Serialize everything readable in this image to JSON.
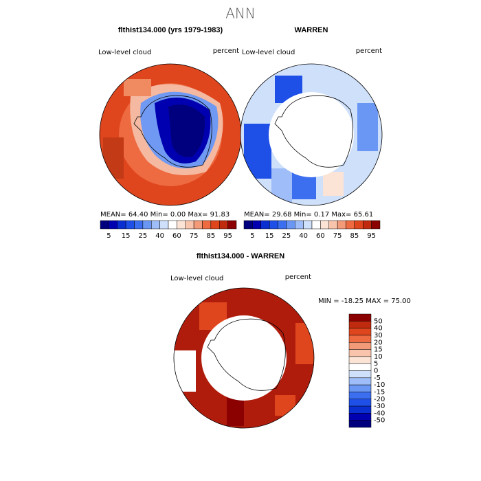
{
  "title": "ANN",
  "panels": [
    {
      "title": "flthist134.000 (yrs 1979-1983)",
      "variable": "Low-level cloud",
      "units": "percent",
      "stats": "MEAN=  64.40   Min=   0.00   Max=  91.83"
    },
    {
      "title": "WARREN",
      "variable": "Low-level cloud",
      "units": "percent",
      "stats": "MEAN=  29.68   Min=   0.17   Max=  65.61"
    },
    {
      "title": "flthist134.000 - WARREN",
      "variable": "Low-level cloud",
      "units": "percent",
      "stats": "MIN = -18.25 MAX =  75.00"
    }
  ],
  "colorbar": {
    "labels": [
      5,
      15,
      25,
      40,
      60,
      75,
      85,
      95
    ]
  },
  "diff_colorbar": {
    "labels": [
      50,
      40,
      30,
      20,
      15,
      10,
      5,
      0,
      -5,
      -10,
      -15,
      -20,
      -30,
      -40,
      -50
    ]
  }
}
